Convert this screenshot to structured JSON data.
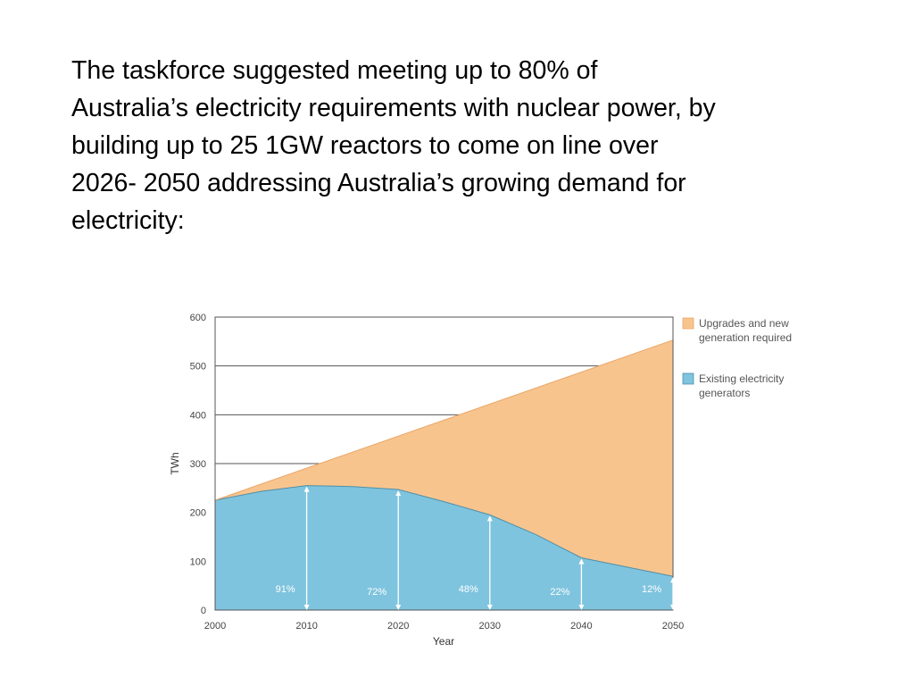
{
  "intro_lines": [
    "The taskforce suggested meeting up to 80% of",
    "Australia’s electricity requirements with nuclear power, by",
    "building up to 25 1GW reactors to come on line over",
    "2026- 2050 addressing Australia’s growing demand for",
    "electricity:"
  ],
  "chart_data": {
    "type": "area",
    "xlabel": "Year",
    "ylabel": "TWh",
    "xlim": [
      2000,
      2050
    ],
    "ylim": [
      0,
      600
    ],
    "xticks": [
      "2000",
      "2010",
      "2020",
      "2030",
      "2040",
      "2050"
    ],
    "yticks": [
      "0",
      "100",
      "200",
      "300",
      "400",
      "500",
      "600"
    ],
    "grid": true,
    "legend_position": "right",
    "series": [
      {
        "name": "Upgrades and new generation required",
        "color": "#f8c48e",
        "x": [
          2000,
          2050
        ],
        "values": [
          225,
          553
        ]
      },
      {
        "name": "Existing electricity generators",
        "color": "#7fc4de",
        "x": [
          2000,
          2005,
          2010,
          2015,
          2020,
          2025,
          2030,
          2035,
          2040,
          2045,
          2050
        ],
        "values": [
          225,
          243,
          255,
          253,
          247,
          222,
          195,
          155,
          107,
          88,
          69
        ]
      }
    ],
    "annotations": [
      {
        "year": 2010,
        "label": "91%",
        "top": 255
      },
      {
        "year": 2020,
        "label": "72%",
        "top": 247
      },
      {
        "year": 2030,
        "label": "48%",
        "top": 195
      },
      {
        "year": 2040,
        "label": "22%",
        "top": 107
      },
      {
        "year": 2050,
        "label": "12%",
        "top": 69
      }
    ]
  }
}
